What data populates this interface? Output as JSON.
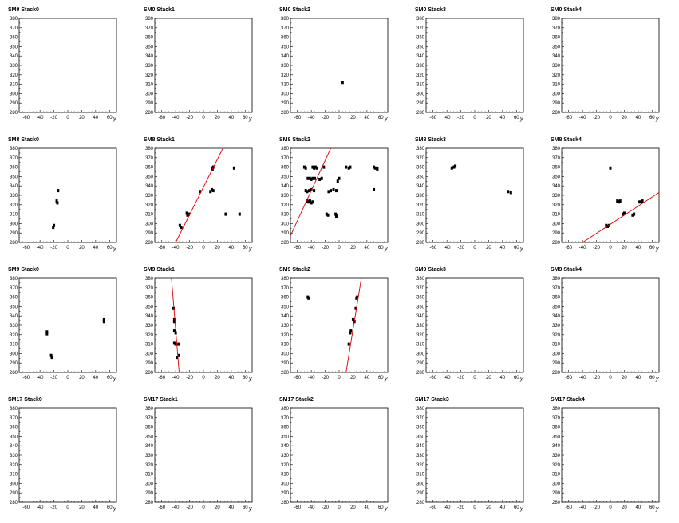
{
  "colors": {
    "axis": "#000000",
    "point": "#000000",
    "fit": "#dd0000",
    "background": "#ffffff"
  },
  "chart_data": [
    {
      "type": "scatter",
      "title": "SM0 Stack0",
      "xlabel": "y",
      "xlim": [
        -70,
        70
      ],
      "ylim": [
        280,
        380
      ],
      "xticks": [
        -60,
        -40,
        -20,
        0,
        20,
        40,
        60
      ],
      "yticks": [
        280,
        290,
        300,
        310,
        320,
        330,
        340,
        350,
        360,
        370,
        380
      ],
      "points": [],
      "fit": null
    },
    {
      "type": "scatter",
      "title": "SM0 Stack1",
      "xlabel": "y",
      "xlim": [
        -70,
        70
      ],
      "ylim": [
        280,
        380
      ],
      "xticks": [
        -60,
        -40,
        -20,
        0,
        20,
        40,
        60
      ],
      "yticks": [
        280,
        290,
        300,
        310,
        320,
        330,
        340,
        350,
        360,
        370,
        380
      ],
      "points": [],
      "fit": null
    },
    {
      "type": "scatter",
      "title": "SM0 Stack2",
      "xlabel": "y",
      "xlim": [
        -70,
        70
      ],
      "ylim": [
        280,
        380
      ],
      "xticks": [
        -60,
        -40,
        -20,
        0,
        20,
        40,
        60
      ],
      "yticks": [
        280,
        290,
        300,
        310,
        320,
        330,
        340,
        350,
        360,
        370,
        380
      ],
      "points": [
        [
          5,
          312
        ]
      ],
      "fit": null
    },
    {
      "type": "scatter",
      "title": "SM0 Stack3",
      "xlabel": "y",
      "xlim": [
        -70,
        70
      ],
      "ylim": [
        280,
        380
      ],
      "xticks": [
        -60,
        -40,
        -20,
        0,
        20,
        40,
        60
      ],
      "yticks": [
        280,
        290,
        300,
        310,
        320,
        330,
        340,
        350,
        360,
        370,
        380
      ],
      "points": [],
      "fit": null
    },
    {
      "type": "scatter",
      "title": "SM0 Stack4",
      "xlabel": "y",
      "xlim": [
        -70,
        70
      ],
      "ylim": [
        280,
        380
      ],
      "xticks": [
        -60,
        -40,
        -20,
        0,
        20,
        40,
        60
      ],
      "yticks": [
        280,
        290,
        300,
        310,
        320,
        330,
        340,
        350,
        360,
        370,
        380
      ],
      "points": [],
      "fit": null
    },
    {
      "type": "scatter",
      "title": "SM8 Stack0",
      "xlabel": "y",
      "xlim": [
        -70,
        70
      ],
      "ylim": [
        280,
        380
      ],
      "xticks": [
        -60,
        -40,
        -20,
        0,
        20,
        40,
        60
      ],
      "yticks": [
        280,
        290,
        300,
        310,
        320,
        330,
        340,
        350,
        360,
        370,
        380
      ],
      "points": [
        [
          -20,
          298
        ],
        [
          -21,
          296
        ],
        [
          -16,
          324
        ],
        [
          -15,
          322
        ],
        [
          -14,
          335
        ]
      ],
      "fit": null
    },
    {
      "type": "scatter",
      "title": "SM8 Stack1",
      "xlabel": "y",
      "xlim": [
        -70,
        70
      ],
      "ylim": [
        280,
        380
      ],
      "xticks": [
        -60,
        -40,
        -20,
        0,
        20,
        40,
        60
      ],
      "yticks": [
        280,
        290,
        300,
        310,
        320,
        330,
        340,
        350,
        360,
        370,
        380
      ],
      "points": [
        [
          -34,
          298
        ],
        [
          -32,
          296
        ],
        [
          -24,
          311
        ],
        [
          -23,
          309
        ],
        [
          -21,
          310
        ],
        [
          -5,
          334
        ],
        [
          10,
          334
        ],
        [
          12,
          336
        ],
        [
          14,
          335
        ],
        [
          14,
          360
        ],
        [
          13,
          358
        ],
        [
          44,
          359
        ],
        [
          32,
          310
        ],
        [
          52,
          310
        ]
      ],
      "fit": [
        [
          -40,
          280
        ],
        [
          28,
          380
        ]
      ]
    },
    {
      "type": "scatter",
      "title": "SM8 Stack2",
      "xlabel": "y",
      "xlim": [
        -70,
        70
      ],
      "ylim": [
        280,
        380
      ],
      "xticks": [
        -60,
        -40,
        -20,
        0,
        20,
        40,
        60
      ],
      "yticks": [
        280,
        290,
        300,
        310,
        320,
        330,
        340,
        350,
        360,
        370,
        380
      ],
      "points": [
        [
          -50,
          360
        ],
        [
          -48,
          359
        ],
        [
          -38,
          360
        ],
        [
          -36,
          359
        ],
        [
          -34,
          360
        ],
        [
          -32,
          359
        ],
        [
          -22,
          360
        ],
        [
          -45,
          348
        ],
        [
          -42,
          348
        ],
        [
          -40,
          347
        ],
        [
          -38,
          348
        ],
        [
          -35,
          348
        ],
        [
          -28,
          347
        ],
        [
          -25,
          348
        ],
        [
          -48,
          335
        ],
        [
          -46,
          334
        ],
        [
          -43,
          335
        ],
        [
          -40,
          336
        ],
        [
          -36,
          335
        ],
        [
          -46,
          324
        ],
        [
          -44,
          323
        ],
        [
          -42,
          324
        ],
        [
          -40,
          322
        ],
        [
          -38,
          323
        ],
        [
          -15,
          334
        ],
        [
          -12,
          335
        ],
        [
          -8,
          336
        ],
        [
          -4,
          335
        ],
        [
          -2,
          345
        ],
        [
          0,
          348
        ],
        [
          -18,
          310
        ],
        [
          -16,
          309
        ],
        [
          -5,
          310
        ],
        [
          -4,
          308
        ],
        [
          10,
          360
        ],
        [
          14,
          359
        ],
        [
          16,
          360
        ],
        [
          50,
          336
        ],
        [
          50,
          360
        ],
        [
          52,
          359
        ],
        [
          55,
          358
        ]
      ],
      "fit": [
        [
          -70,
          287
        ],
        [
          -12,
          380
        ]
      ]
    },
    {
      "type": "scatter",
      "title": "SM8 Stack3",
      "xlabel": "y",
      "xlim": [
        -70,
        70
      ],
      "ylim": [
        280,
        380
      ],
      "xticks": [
        -60,
        -40,
        -20,
        0,
        20,
        40,
        60
      ],
      "yticks": [
        280,
        290,
        300,
        310,
        320,
        330,
        340,
        350,
        360,
        370,
        380
      ],
      "points": [
        [
          -33,
          359
        ],
        [
          -30,
          360
        ],
        [
          -28,
          361
        ],
        [
          48,
          334
        ],
        [
          52,
          333
        ]
      ],
      "fit": null
    },
    {
      "type": "scatter",
      "title": "SM8 Stack4",
      "xlabel": "y",
      "xlim": [
        -70,
        70
      ],
      "ylim": [
        280,
        380
      ],
      "xticks": [
        -60,
        -40,
        -20,
        0,
        20,
        40,
        60
      ],
      "yticks": [
        280,
        290,
        300,
        310,
        320,
        330,
        340,
        350,
        360,
        370,
        380
      ],
      "points": [
        [
          -6,
          298
        ],
        [
          -4,
          297
        ],
        [
          -2,
          298
        ],
        [
          0,
          359
        ],
        [
          10,
          324
        ],
        [
          12,
          323
        ],
        [
          14,
          324
        ],
        [
          18,
          310
        ],
        [
          20,
          311
        ],
        [
          34,
          310
        ],
        [
          32,
          309
        ],
        [
          42,
          323
        ],
        [
          46,
          324
        ]
      ],
      "fit": [
        [
          -40,
          280
        ],
        [
          70,
          333
        ]
      ]
    },
    {
      "type": "scatter",
      "title": "SM9 Stack0",
      "xlabel": "y",
      "xlim": [
        -70,
        70
      ],
      "ylim": [
        280,
        380
      ],
      "xticks": [
        -60,
        -40,
        -20,
        0,
        20,
        40,
        60
      ],
      "yticks": [
        280,
        290,
        300,
        310,
        320,
        330,
        340,
        350,
        360,
        370,
        380
      ],
      "points": [
        [
          -30,
          323
        ],
        [
          -30,
          321
        ],
        [
          -24,
          298
        ],
        [
          -23,
          296
        ],
        [
          52,
          336
        ],
        [
          52,
          334
        ]
      ],
      "fit": null
    },
    {
      "type": "scatter",
      "title": "SM9 Stack1",
      "xlabel": "y",
      "xlim": [
        -70,
        70
      ],
      "ylim": [
        280,
        380
      ],
      "xticks": [
        -60,
        -40,
        -20,
        0,
        20,
        40,
        60
      ],
      "yticks": [
        280,
        290,
        300,
        310,
        320,
        330,
        340,
        350,
        360,
        370,
        380
      ],
      "points": [
        [
          -43,
          348
        ],
        [
          -42,
          336
        ],
        [
          -42,
          334
        ],
        [
          -42,
          324
        ],
        [
          -40,
          322
        ],
        [
          -40,
          310
        ],
        [
          -42,
          311
        ],
        [
          -36,
          310
        ],
        [
          -35,
          298
        ],
        [
          -38,
          296
        ]
      ],
      "fit": [
        [
          -46,
          380
        ],
        [
          -35,
          280
        ]
      ]
    },
    {
      "type": "scatter",
      "title": "SM9 Stack2",
      "xlabel": "y",
      "xlim": [
        -70,
        70
      ],
      "ylim": [
        280,
        380
      ],
      "xticks": [
        -60,
        -40,
        -20,
        0,
        20,
        40,
        60
      ],
      "yticks": [
        280,
        290,
        300,
        310,
        320,
        330,
        340,
        350,
        360,
        370,
        380
      ],
      "points": [
        [
          -45,
          360
        ],
        [
          -44,
          359
        ],
        [
          14,
          310
        ],
        [
          16,
          322
        ],
        [
          17,
          324
        ],
        [
          20,
          336
        ],
        [
          22,
          334
        ],
        [
          24,
          348
        ],
        [
          26,
          360
        ],
        [
          25,
          359
        ]
      ],
      "fit": [
        [
          10,
          280
        ],
        [
          32,
          380
        ]
      ]
    },
    {
      "type": "scatter",
      "title": "SM9 Stack3",
      "xlabel": "y",
      "xlim": [
        -70,
        70
      ],
      "ylim": [
        280,
        380
      ],
      "xticks": [
        -60,
        -40,
        -20,
        0,
        20,
        40,
        60
      ],
      "yticks": [
        280,
        290,
        300,
        310,
        320,
        330,
        340,
        350,
        360,
        370,
        380
      ],
      "points": [],
      "fit": null
    },
    {
      "type": "scatter",
      "title": "SM9 Stack4",
      "xlabel": "y",
      "xlim": [
        -70,
        70
      ],
      "ylim": [
        280,
        380
      ],
      "xticks": [
        -60,
        -40,
        -20,
        0,
        20,
        40,
        60
      ],
      "yticks": [
        280,
        290,
        300,
        310,
        320,
        330,
        340,
        350,
        360,
        370,
        380
      ],
      "points": [],
      "fit": null
    },
    {
      "type": "scatter",
      "title": "SM17 Stack0",
      "xlabel": "y",
      "xlim": [
        -70,
        70
      ],
      "ylim": [
        280,
        380
      ],
      "xticks": [
        -60,
        -40,
        -20,
        0,
        20,
        40,
        60
      ],
      "yticks": [
        280,
        290,
        300,
        310,
        320,
        330,
        340,
        350,
        360,
        370,
        380
      ],
      "points": [],
      "fit": null
    },
    {
      "type": "scatter",
      "title": "SM17 Stack1",
      "xlabel": "y",
      "xlim": [
        -70,
        70
      ],
      "ylim": [
        280,
        380
      ],
      "xticks": [
        -60,
        -40,
        -20,
        0,
        20,
        40,
        60
      ],
      "yticks": [
        280,
        290,
        300,
        310,
        320,
        330,
        340,
        350,
        360,
        370,
        380
      ],
      "points": [],
      "fit": null
    },
    {
      "type": "scatter",
      "title": "SM17 Stack2",
      "xlabel": "y",
      "xlim": [
        -70,
        70
      ],
      "ylim": [
        280,
        380
      ],
      "xticks": [
        -60,
        -40,
        -20,
        0,
        20,
        40,
        60
      ],
      "yticks": [
        280,
        290,
        300,
        310,
        320,
        330,
        340,
        350,
        360,
        370,
        380
      ],
      "points": [],
      "fit": null
    },
    {
      "type": "scatter",
      "title": "SM17 Stack3",
      "xlabel": "y",
      "xlim": [
        -70,
        70
      ],
      "ylim": [
        280,
        380
      ],
      "xticks": [
        -60,
        -40,
        -20,
        0,
        20,
        40,
        60
      ],
      "yticks": [
        280,
        290,
        300,
        310,
        320,
        330,
        340,
        350,
        360,
        370,
        380
      ],
      "points": [],
      "fit": null
    },
    {
      "type": "scatter",
      "title": "SM17 Stack4",
      "xlabel": "y",
      "xlim": [
        -70,
        70
      ],
      "ylim": [
        280,
        380
      ],
      "xticks": [
        -60,
        -40,
        -20,
        0,
        20,
        40,
        60
      ],
      "yticks": [
        280,
        290,
        300,
        310,
        320,
        330,
        340,
        350,
        360,
        370,
        380
      ],
      "points": [],
      "fit": null
    }
  ]
}
